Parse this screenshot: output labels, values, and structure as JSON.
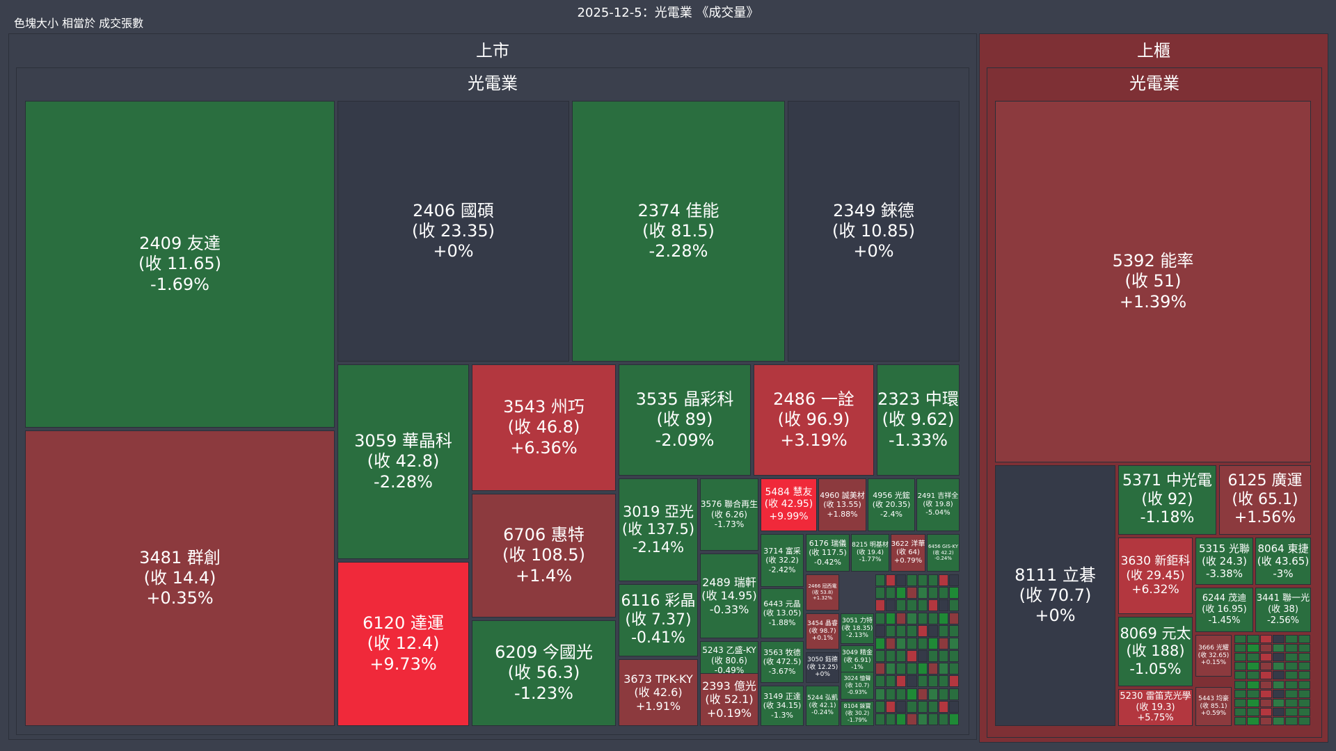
{
  "title": "2025-12-5：光電業 《成交量》",
  "size_note": "色塊大小 相當於 成交張數",
  "colors": {
    "background": "#3b404d",
    "neutral": "#353a48",
    "down_strong": "#1f8a36",
    "down": "#2a6e3f",
    "down_light": "#2f7a45",
    "up": "#8c3a3e",
    "up_mid": "#b3373f",
    "up_strong": "#f0293a",
    "otc_panel": "#7e3035"
  },
  "markets": [
    {
      "name": "上市",
      "industry": "光電業"
    },
    {
      "name": "上櫃",
      "industry": "光電業"
    }
  ],
  "chart_data": {
    "type": "treemap",
    "title": "2025-12-5：光電業 《成交量》",
    "size_metric": "成交張數",
    "color_metric": "漲跌幅 (%)",
    "stocks": [
      {
        "market": "上市",
        "code": "2409",
        "name": "友達",
        "close": "11.65",
        "change": "-1.69%",
        "pct": -1.69
      },
      {
        "market": "上市",
        "code": "3481",
        "name": "群創",
        "close": "14.4",
        "change": "+0.35%",
        "pct": 0.35
      },
      {
        "market": "上市",
        "code": "2406",
        "name": "國碩",
        "close": "23.35",
        "change": "+0%",
        "pct": 0
      },
      {
        "market": "上市",
        "code": "2374",
        "name": "佳能",
        "close": "81.5",
        "change": "-2.28%",
        "pct": -2.28
      },
      {
        "market": "上市",
        "code": "2349",
        "name": "錸德",
        "close": "10.85",
        "change": "+0%",
        "pct": 0
      },
      {
        "market": "上市",
        "code": "3059",
        "name": "華晶科",
        "close": "42.8",
        "change": "-2.28%",
        "pct": -2.28
      },
      {
        "market": "上市",
        "code": "6120",
        "name": "達運",
        "close": "12.4",
        "change": "+9.73%",
        "pct": 9.73
      },
      {
        "market": "上市",
        "code": "3543",
        "name": "州巧",
        "close": "46.8",
        "change": "+6.36%",
        "pct": 6.36
      },
      {
        "market": "上市",
        "code": "6706",
        "name": "惠特",
        "close": "108.5",
        "change": "+1.4%",
        "pct": 1.4
      },
      {
        "market": "上市",
        "code": "6209",
        "name": "今國光",
        "close": "56.3",
        "change": "-1.23%",
        "pct": -1.23
      },
      {
        "market": "上市",
        "code": "3535",
        "name": "晶彩科",
        "close": "89",
        "change": "-2.09%",
        "pct": -2.09
      },
      {
        "market": "上市",
        "code": "2486",
        "name": "一詮",
        "close": "96.9",
        "change": "+3.19%",
        "pct": 3.19
      },
      {
        "market": "上市",
        "code": "2323",
        "name": "中環",
        "close": "9.62",
        "change": "-1.33%",
        "pct": -1.33
      },
      {
        "market": "上市",
        "code": "3019",
        "name": "亞光",
        "close": "137.5",
        "change": "-2.14%",
        "pct": -2.14
      },
      {
        "market": "上市",
        "code": "6116",
        "name": "彩晶",
        "close": "7.37",
        "change": "-0.41%",
        "pct": -0.41
      },
      {
        "market": "上市",
        "code": "3673",
        "name": "TPK-KY",
        "close": "42.6",
        "change": "+1.91%",
        "pct": 1.91
      },
      {
        "market": "上市",
        "code": "3576",
        "name": "聯合再生",
        "close": "6.26",
        "change": "-1.73%",
        "pct": -1.73
      },
      {
        "market": "上市",
        "code": "2489",
        "name": "瑞軒",
        "close": "14.95",
        "change": "-0.33%",
        "pct": -0.33
      },
      {
        "market": "上市",
        "code": "5243",
        "name": "乙盛-KY",
        "close": "80.6",
        "change": "-0.49%",
        "pct": -0.49
      },
      {
        "market": "上市",
        "code": "2393",
        "name": "億光",
        "close": "52.1",
        "change": "+0.19%",
        "pct": 0.19
      },
      {
        "market": "上市",
        "code": "5484",
        "name": "慧友",
        "close": "42.95",
        "change": "+9.99%",
        "pct": 9.99
      },
      {
        "market": "上市",
        "code": "4960",
        "name": "誠美材",
        "close": "13.55",
        "change": "+1.88%",
        "pct": 1.88
      },
      {
        "market": "上市",
        "code": "4956",
        "name": "光鋐",
        "close": "20.35",
        "change": "-2.4%",
        "pct": -2.4
      },
      {
        "market": "上市",
        "code": "2491",
        "name": "吉祥全",
        "close": "19.8",
        "change": "-5.04%",
        "pct": -5.04
      },
      {
        "market": "上市",
        "code": "3714",
        "name": "富采",
        "close": "32.2",
        "change": "-2.42%",
        "pct": -2.42
      },
      {
        "market": "上市",
        "code": "6176",
        "name": "瑞儀",
        "close": "117.5",
        "change": "-0.42%",
        "pct": -0.42
      },
      {
        "market": "上市",
        "code": "8215",
        "name": "明基材",
        "close": "19.4",
        "change": "-1.77%",
        "pct": -1.77
      },
      {
        "market": "上市",
        "code": "3622",
        "name": "洋華",
        "close": "64",
        "change": "+0.79%",
        "pct": 0.79
      },
      {
        "market": "上市",
        "code": "6456",
        "name": "GIS-KY",
        "close": "42.2",
        "change": "-0.24%",
        "pct": -0.24
      },
      {
        "market": "上市",
        "code": "6443",
        "name": "元晶",
        "close": "13.05",
        "change": "-1.88%",
        "pct": -1.88
      },
      {
        "market": "上市",
        "code": "2466",
        "name": "冠西電",
        "close": "53.8",
        "change": "+1.32%",
        "pct": 1.32
      },
      {
        "market": "上市",
        "code": "3454",
        "name": "晶睿",
        "close": "98.7",
        "change": "+0.1%",
        "pct": 0.1
      },
      {
        "market": "上市",
        "code": "3563",
        "name": "牧德",
        "close": "472.5",
        "change": "-3.67%",
        "pct": -3.67
      },
      {
        "market": "上市",
        "code": "3050",
        "name": "鈺德",
        "close": "12.25",
        "change": "+0%",
        "pct": 0
      },
      {
        "market": "上市",
        "code": "3149",
        "name": "正達",
        "close": "34.15",
        "change": "-1.3%",
        "pct": -1.3
      },
      {
        "market": "上市",
        "code": "5244",
        "name": "弘凱",
        "close": "42.1",
        "change": "-0.24%",
        "pct": -0.24
      },
      {
        "market": "上市",
        "code": "3051",
        "name": "力特",
        "close": "18.35",
        "change": "-2.13%",
        "pct": -2.13
      },
      {
        "market": "上市",
        "code": "3049",
        "name": "精金",
        "close": "6.91",
        "change": "-1%",
        "pct": -1
      },
      {
        "market": "上市",
        "code": "3024",
        "name": "憶聲",
        "close": "10.7",
        "change": "-0.93%",
        "pct": -0.93
      },
      {
        "market": "上市",
        "code": "8104",
        "name": "錸寶",
        "close": "30.2",
        "change": "-1.79%",
        "pct": -1.79
      },
      {
        "market": "上櫃",
        "code": "5392",
        "name": "能率",
        "close": "51",
        "change": "+1.39%",
        "pct": 1.39
      },
      {
        "market": "上櫃",
        "code": "8111",
        "name": "立碁",
        "close": "70.7",
        "change": "+0%",
        "pct": 0
      },
      {
        "market": "上櫃",
        "code": "5371",
        "name": "中光電",
        "close": "92",
        "change": "-1.18%",
        "pct": -1.18
      },
      {
        "market": "上櫃",
        "code": "6125",
        "name": "廣運",
        "close": "65.1",
        "change": "+1.56%",
        "pct": 1.56
      },
      {
        "market": "上櫃",
        "code": "3630",
        "name": "新鉅科",
        "close": "29.45",
        "change": "+6.32%",
        "pct": 6.32
      },
      {
        "market": "上櫃",
        "code": "5315",
        "name": "光聯",
        "close": "24.3",
        "change": "-3.38%",
        "pct": -3.38
      },
      {
        "market": "上櫃",
        "code": "8064",
        "name": "東捷",
        "close": "43.65",
        "change": "-3%",
        "pct": -3
      },
      {
        "market": "上櫃",
        "code": "6244",
        "name": "茂迪",
        "close": "16.95",
        "change": "-1.45%",
        "pct": -1.45
      },
      {
        "market": "上櫃",
        "code": "3441",
        "name": "聯一光",
        "close": "38",
        "change": "-2.56%",
        "pct": -2.56
      },
      {
        "market": "上櫃",
        "code": "8069",
        "name": "元太",
        "close": "188",
        "change": "-1.05%",
        "pct": -1.05
      },
      {
        "market": "上櫃",
        "code": "3666",
        "name": "光耀",
        "close": "32.65",
        "change": "+0.15%",
        "pct": 0.15
      },
      {
        "market": "上櫃",
        "code": "5230",
        "name": "雷笛克光學",
        "close": "19.3",
        "change": "+5.75%",
        "pct": 5.75
      },
      {
        "market": "上櫃",
        "code": "5443",
        "name": "均豪",
        "close": "85.1",
        "change": "+0.59%",
        "pct": 0.59
      }
    ]
  }
}
